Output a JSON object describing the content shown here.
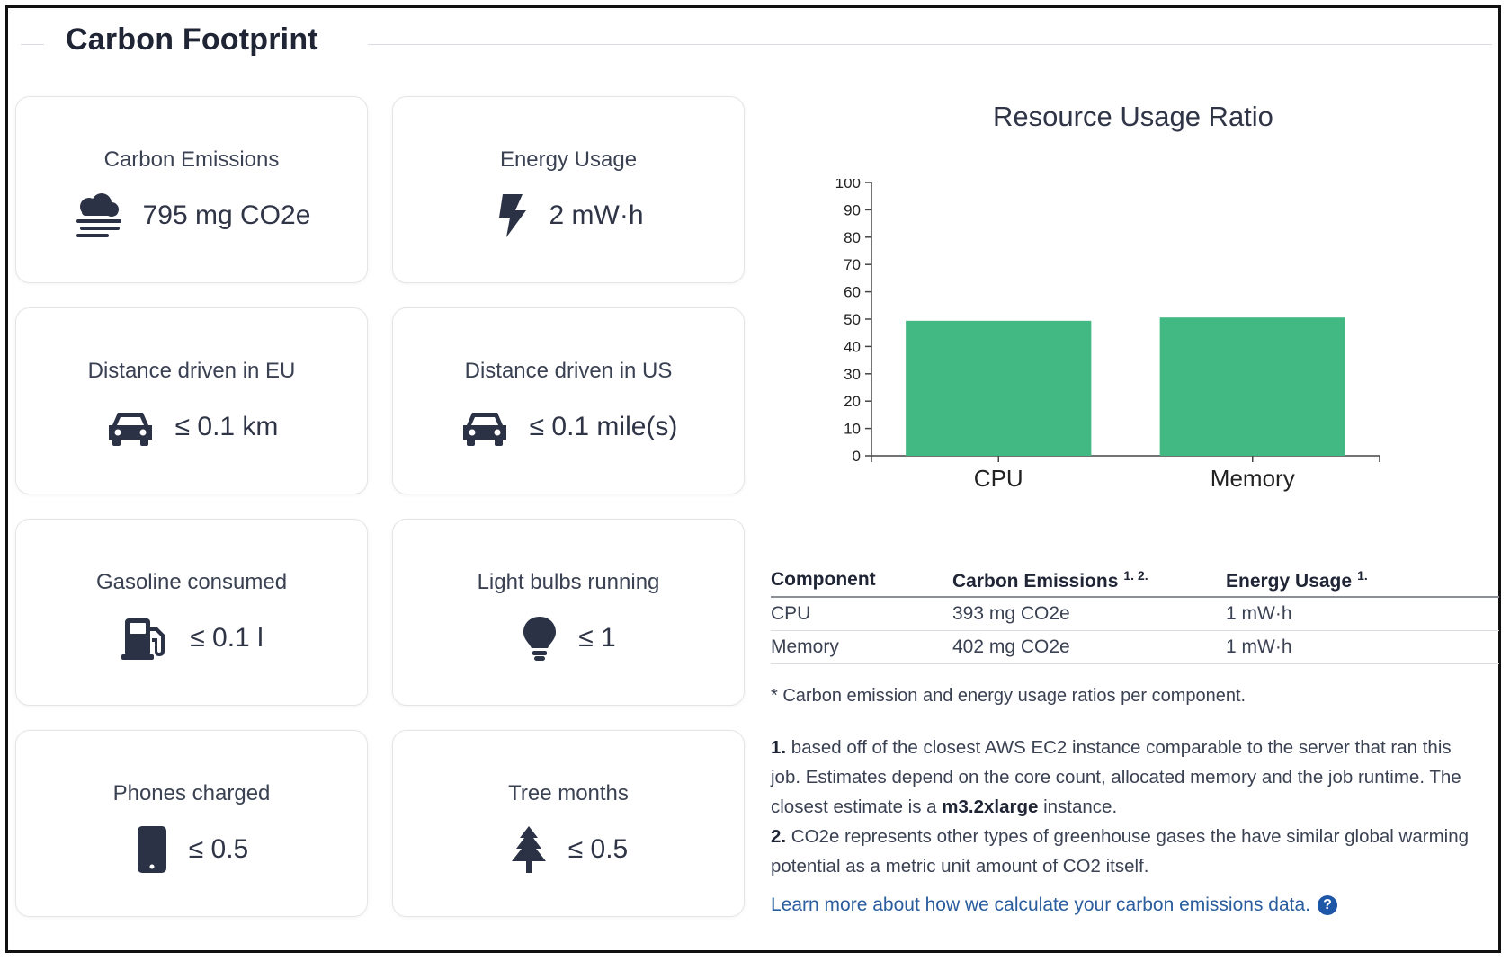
{
  "page": {
    "title": "Carbon Footprint"
  },
  "cards": [
    {
      "label": "Carbon Emissions",
      "value": "795 mg CO2e",
      "icon": "smog-icon"
    },
    {
      "label": "Energy Usage",
      "value": "2 mW·h",
      "icon": "bolt-icon"
    },
    {
      "label": "Distance driven in EU",
      "value": "≤ 0.1 km",
      "icon": "car-icon"
    },
    {
      "label": "Distance driven in US",
      "value": "≤ 0.1 mile(s)",
      "icon": "car-icon"
    },
    {
      "label": "Gasoline consumed",
      "value": "≤ 0.1 l",
      "icon": "gas-pump-icon"
    },
    {
      "label": "Light bulbs running",
      "value": "≤ 1",
      "icon": "lightbulb-icon"
    },
    {
      "label": "Phones charged",
      "value": "≤ 0.5",
      "icon": "mobile-phone-icon"
    },
    {
      "label": "Tree months",
      "value": "≤ 0.5",
      "icon": "tree-icon"
    }
  ],
  "chart_data": {
    "type": "bar",
    "title": "Resource Usage Ratio",
    "categories": [
      "CPU",
      "Memory"
    ],
    "values": [
      49.4,
      50.6
    ],
    "ylim": [
      0,
      100
    ],
    "yticks": [
      "0",
      "10",
      "20",
      "30",
      "40",
      "50",
      "60",
      "70",
      "80",
      "90",
      "100"
    ],
    "xlabel": "",
    "ylabel": "",
    "grid": false,
    "bar_color": "#42b983"
  },
  "table": {
    "headers": {
      "component": "Component",
      "emissions": "Carbon Emissions",
      "emissions_sup": "1. 2.",
      "energy": "Energy Usage",
      "energy_sup": "1."
    },
    "rows": [
      {
        "component": "CPU",
        "emissions": "393 mg CO2e",
        "energy": "1 mW·h"
      },
      {
        "component": "Memory",
        "emissions": "402 mg CO2e",
        "energy": "1 mW·h"
      }
    ]
  },
  "notes": {
    "ratio_note": "* Carbon emission and energy usage ratios per component.",
    "fn1_num": "1.",
    "fn1_text_a": " based off of the closest AWS EC2 instance comparable to the server that ran this job. Estimates depend on the core count, allocated memory and the job runtime. The closest estimate is a ",
    "fn1_instance": "m3.2xlarge",
    "fn1_text_b": " instance.",
    "fn2_num": "2.",
    "fn2_text": " CO2e represents other types of greenhouse gases the have similar global warming potential as a metric unit amount of CO2 itself.",
    "learn_more": "Learn more about how we calculate your carbon emissions data.",
    "help_glyph": "?"
  }
}
